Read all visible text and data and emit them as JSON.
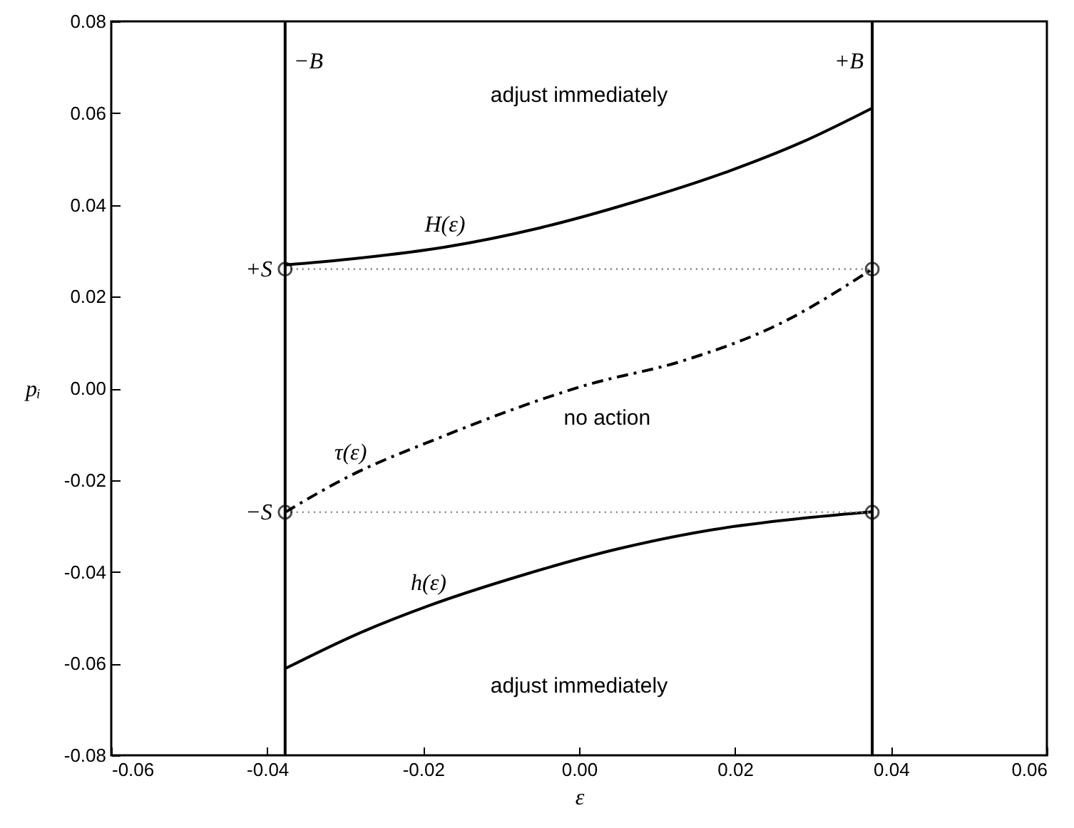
{
  "chart_data": {
    "type": "line",
    "xlabel": "ε",
    "ylabel": "pᵢ",
    "xlim": [
      -0.06,
      0.06
    ],
    "ylim": [
      -0.08,
      0.08
    ],
    "xticks": [
      {
        "value": -0.06,
        "label": "-0.06"
      },
      {
        "value": -0.04,
        "label": "-0.04"
      },
      {
        "value": -0.02,
        "label": "-0.02"
      },
      {
        "value": 0,
        "label": "0.00"
      },
      {
        "value": 0.02,
        "label": "0.02"
      },
      {
        "value": 0.04,
        "label": "0.04"
      },
      {
        "value": 0.06,
        "label": "0.06"
      }
    ],
    "yticks": [
      {
        "value": -0.08,
        "label": "-0.08"
      },
      {
        "value": -0.06,
        "label": "-0.06"
      },
      {
        "value": -0.04,
        "label": "-0.04"
      },
      {
        "value": -0.02,
        "label": "-0.02"
      },
      {
        "value": 0,
        "label": "0.00"
      },
      {
        "value": 0.02,
        "label": "0.02"
      },
      {
        "value": 0.04,
        "label": "0.04"
      },
      {
        "value": 0.06,
        "label": "0.06"
      },
      {
        "value": 0.08,
        "label": "0.08"
      }
    ],
    "grid": false,
    "series": [
      {
        "name": "H(ε)",
        "color": "#000000",
        "line_style": "solid",
        "x": [
          -0.0377,
          -0.0293,
          -0.0172,
          -0.005,
          0.0072,
          0.0193,
          0.0285,
          0.0376
        ],
        "values": [
          0.0269,
          0.0282,
          0.0308,
          0.035,
          0.0407,
          0.0474,
          0.0536,
          0.0611
        ]
      },
      {
        "name": "τ(ε)",
        "color": "#000000",
        "line_style": "dashdot",
        "x": [
          -0.0377,
          -0.0293,
          -0.0184,
          0.0011,
          0.0133,
          0.0254,
          0.0376
        ],
        "values": [
          -0.027,
          -0.019,
          -0.0111,
          0.0008,
          0.006,
          0.0138,
          0.026
        ]
      },
      {
        "name": "h(ε)",
        "color": "#000000",
        "line_style": "solid",
        "x": [
          -0.0377,
          -0.0285,
          -0.0193,
          -0.0072,
          0.005,
          0.0172,
          0.0293,
          0.0376
        ],
        "values": [
          -0.0611,
          -0.0536,
          -0.0474,
          -0.0407,
          -0.035,
          -0.0308,
          -0.0282,
          -0.0269
        ]
      },
      {
        "color": "#888888",
        "line_style": "dotted",
        "x": [
          -0.0377,
          0.0376
        ],
        "values": [
          0.026,
          0.026
        ]
      },
      {
        "color": "#888888",
        "line_style": "dotted",
        "x": [
          -0.0377,
          0.0376
        ],
        "values": [
          -0.027,
          -0.027
        ]
      },
      {
        "type": "scatter",
        "marker": "circle",
        "color": "#000000",
        "x": [
          -0.0377,
          0.0376,
          -0.0377,
          0.0376
        ],
        "values": [
          0.026,
          0.026,
          -0.027,
          -0.027
        ]
      }
    ],
    "ref_lines": [
      {
        "axis": "x",
        "value": -0.0377,
        "label": "−B",
        "color": "#000000"
      },
      {
        "axis": "x",
        "value": 0.0376,
        "label": "+B",
        "color": "#000000"
      }
    ],
    "annotations": [
      "adjust immediately",
      "no action",
      "adjust immediately",
      {
        "text": "+S",
        "x": -0.0377,
        "y": 0.026
      },
      {
        "text": "−S",
        "x": -0.0377,
        "y": -0.027
      }
    ]
  }
}
